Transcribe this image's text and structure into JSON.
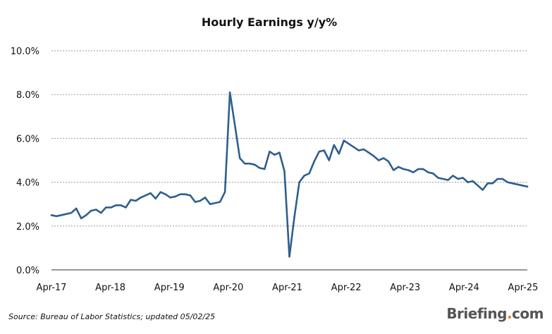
{
  "chart_data": {
    "type": "line",
    "title": "Hourly Earnings y/y%",
    "xlabel": "",
    "ylabel": "",
    "ylim": [
      0,
      10
    ],
    "y_ticks": [
      "0.0%",
      "2.0%",
      "4.0%",
      "6.0%",
      "8.0%",
      "10.0%"
    ],
    "x_ticks": [
      "Apr-17",
      "Apr-18",
      "Apr-19",
      "Apr-20",
      "Apr-21",
      "Apr-22",
      "Apr-23",
      "Apr-24",
      "Apr-25"
    ],
    "grid": "horizontal dashed",
    "line_color": "#2e5f8e",
    "series": [
      {
        "values": [
          2.5,
          2.45,
          2.5,
          2.55,
          2.6,
          2.8,
          2.35,
          2.5,
          2.7,
          2.75,
          2.6,
          2.85,
          2.85,
          2.95,
          2.95,
          2.85,
          3.2,
          3.15,
          3.3,
          3.4,
          3.5,
          3.25,
          3.55,
          3.45,
          3.3,
          3.35,
          3.45,
          3.45,
          3.4,
          3.1,
          3.15,
          3.3,
          3.0,
          3.05,
          3.1,
          3.55,
          8.1,
          6.6,
          5.1,
          4.85,
          4.85,
          4.8,
          4.65,
          4.6,
          5.4,
          5.25,
          5.35,
          4.5,
          0.6,
          2.4,
          4.0,
          4.3,
          4.4,
          4.95,
          5.4,
          5.45,
          5.0,
          5.7,
          5.3,
          5.9,
          5.75,
          5.6,
          5.45,
          5.5,
          5.35,
          5.2,
          5.0,
          5.1,
          4.95,
          4.55,
          4.7,
          4.6,
          4.55,
          4.45,
          4.6,
          4.6,
          4.45,
          4.4,
          4.2,
          4.15,
          4.1,
          4.3,
          4.15,
          4.2,
          4.0,
          4.05,
          3.85,
          3.65,
          3.95,
          3.95,
          4.15,
          4.15,
          4.0,
          3.95,
          3.9,
          3.85,
          3.8
        ]
      }
    ]
  },
  "footer": {
    "source": "Source: Bureau of Labor Statistics; updated 05/02/25",
    "brand_main": "Briefing",
    "brand_dot": ".",
    "brand_tld": "com"
  }
}
